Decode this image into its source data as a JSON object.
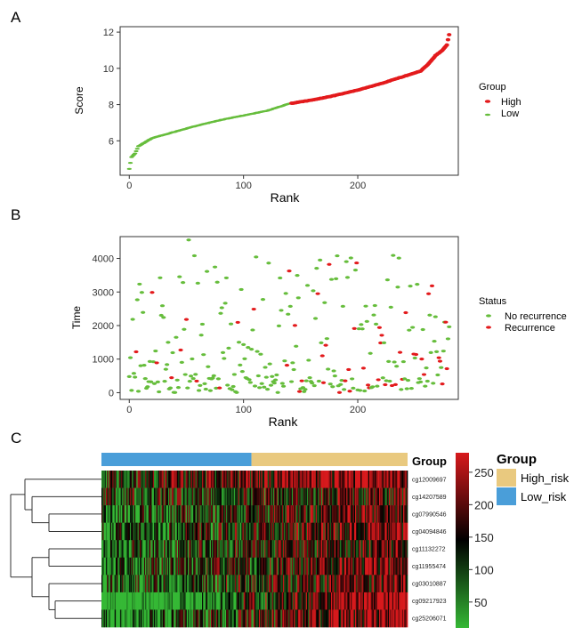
{
  "colors": {
    "high": "#e31a1c",
    "low": "#66bd3c",
    "status_no": "#66bd3c",
    "status_yes": "#e31a1c",
    "group_high_risk": "#e9c97f",
    "group_low_risk": "#4a9ed9",
    "heat_low": "#35b835",
    "heat_mid": "#000000",
    "heat_high": "#d7191c",
    "axis": "#333333"
  },
  "panels": {
    "a": {
      "letter": "A"
    },
    "b": {
      "letter": "B"
    },
    "c": {
      "letter": "C"
    }
  },
  "chart_data": [
    {
      "panel": "A",
      "type": "scatter",
      "xlabel": "Rank",
      "ylabel": "Score",
      "xlim": [
        -8,
        288
      ],
      "ylim": [
        4.1,
        12.3
      ],
      "xticks": [
        0,
        100,
        200
      ],
      "yticks": [
        6,
        8,
        10,
        12
      ],
      "x_tick_labels": [
        "0",
        "100",
        "200"
      ],
      "y_tick_labels": [
        "6",
        "8",
        "10",
        "12"
      ],
      "n_points": 280,
      "cutoff_rank": 142,
      "score_curve": [
        [
          0,
          4.45
        ],
        [
          2,
          5.1
        ],
        [
          5,
          5.3
        ],
        [
          8,
          5.7
        ],
        [
          12,
          5.85
        ],
        [
          20,
          6.15
        ],
        [
          40,
          6.5
        ],
        [
          60,
          6.85
        ],
        [
          80,
          7.15
        ],
        [
          100,
          7.4
        ],
        [
          120,
          7.65
        ],
        [
          140,
          8.05
        ],
        [
          160,
          8.25
        ],
        [
          180,
          8.5
        ],
        [
          200,
          8.8
        ],
        [
          220,
          9.15
        ],
        [
          240,
          9.55
        ],
        [
          255,
          9.85
        ],
        [
          262,
          10.25
        ],
        [
          268,
          10.7
        ],
        [
          274,
          11.0
        ],
        [
          278,
          11.3
        ],
        [
          280,
          11.85
        ]
      ],
      "legend": {
        "title": "Group",
        "position": "right",
        "items": [
          {
            "label": "High",
            "color": "#e31a1c"
          },
          {
            "label": "Low",
            "color": "#66bd3c"
          }
        ]
      },
      "grid": false
    },
    {
      "panel": "B",
      "type": "scatter",
      "xlabel": "Rank",
      "ylabel": "Time",
      "xlim": [
        -8,
        288
      ],
      "ylim": [
        -200,
        4650
      ],
      "xticks": [
        0,
        100,
        200
      ],
      "yticks": [
        0,
        1000,
        2000,
        3000,
        4000
      ],
      "x_tick_labels": [
        "0",
        "100",
        "200"
      ],
      "y_tick_labels": [
        "0",
        "1000",
        "2000",
        "3000",
        "4000"
      ],
      "n_points": 280,
      "time_max": 4550,
      "legend": {
        "title": "Status",
        "position": "right",
        "items": [
          {
            "label": "No recurrence",
            "color": "#66bd3c"
          },
          {
            "label": "Recurrence",
            "color": "#e31a1c"
          }
        ]
      },
      "grid": false
    },
    {
      "panel": "C",
      "type": "heatmap",
      "annotation_title": "Group",
      "rows": [
        "cg12009697",
        "cg14207589",
        "cg07990546",
        "cg04094846",
        "cg11132272",
        "cg11955474",
        "cg03010887",
        "cg09217923",
        "cg25206071"
      ],
      "n_columns": 280,
      "group_split": [
        0.49,
        0.51
      ],
      "groups": [
        "Low_risk",
        "High_risk"
      ],
      "row_trends": [
        0.35,
        0.1,
        0.4,
        0.35,
        0.3,
        0.35,
        0.3,
        0.75,
        0.55
      ],
      "value_range": [
        10,
        280
      ],
      "colorbar_ticks": [
        250,
        200,
        150,
        100,
        50
      ],
      "colorbar_tick_labels": [
        "250",
        "200",
        "150",
        "100",
        "50"
      ],
      "legend": {
        "title": "Group",
        "position": "right",
        "items": [
          {
            "label": "High_risk",
            "color": "#e9c97f"
          },
          {
            "label": "Low_risk",
            "color": "#4a9ed9"
          }
        ]
      }
    }
  ]
}
